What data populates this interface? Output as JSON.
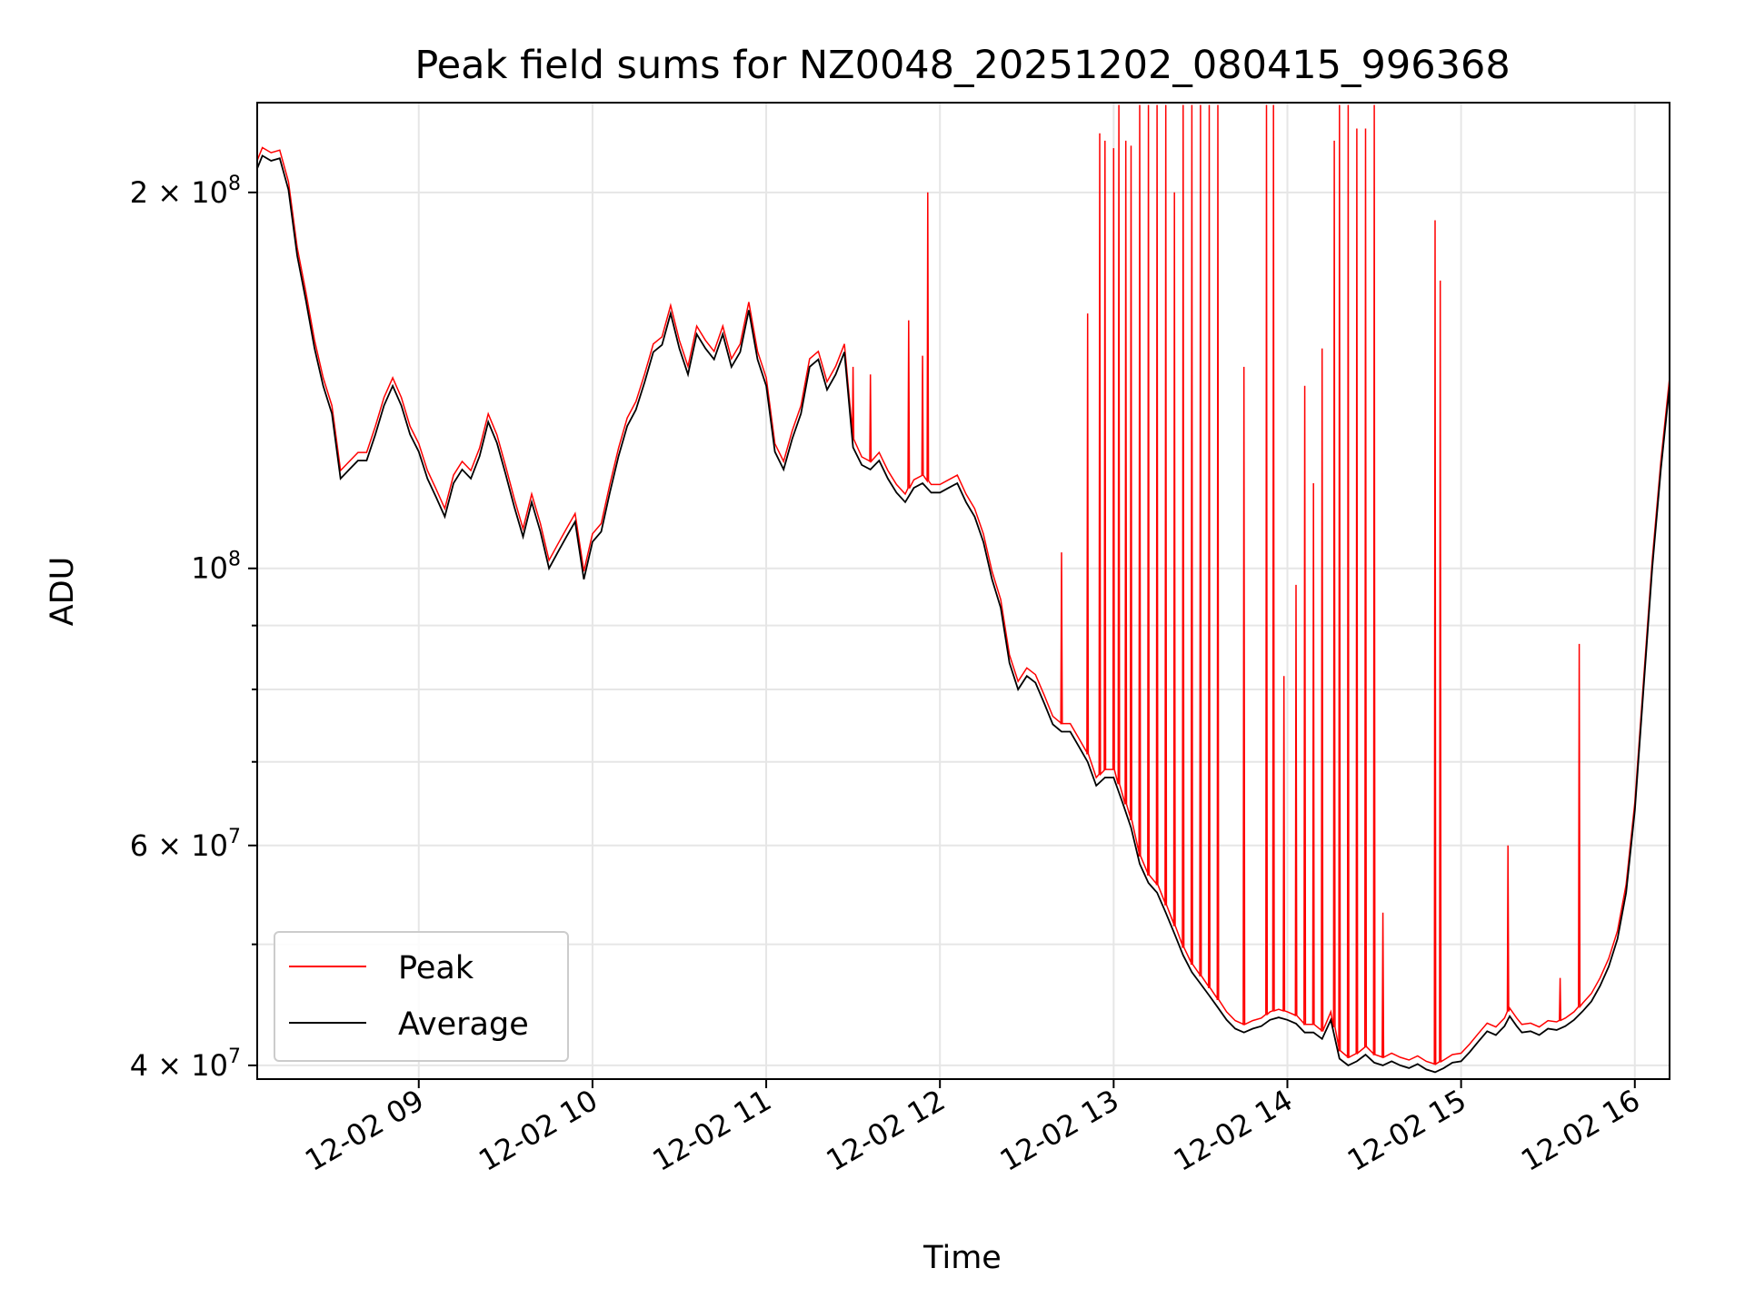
{
  "chart_data": {
    "type": "line",
    "title": "Peak field sums for NZ0048_20251202_080415_996368",
    "xlabel": "Time",
    "ylabel": "ADU",
    "y_scale": "log",
    "x_unit": "hour",
    "xlim": [
      8.07,
      16.2
    ],
    "ylim": [
      39000000,
      236000000
    ],
    "grid": true,
    "legend_position": "lower-left",
    "x_ticks": [
      {
        "value": 9,
        "label": "12-02 09"
      },
      {
        "value": 10,
        "label": "12-02 10"
      },
      {
        "value": 11,
        "label": "12-02 11"
      },
      {
        "value": 12,
        "label": "12-02 12"
      },
      {
        "value": 13,
        "label": "12-02 13"
      },
      {
        "value": 14,
        "label": "12-02 14"
      },
      {
        "value": 15,
        "label": "12-02 15"
      },
      {
        "value": 16,
        "label": "12-02 16"
      }
    ],
    "y_major_ticks": [
      {
        "value": 40000000,
        "mantissa": "4",
        "exponent": "7"
      },
      {
        "value": 60000000,
        "mantissa": "6",
        "exponent": "7"
      },
      {
        "value": 100000000,
        "mantissa": "",
        "exponent": "8"
      },
      {
        "value": 200000000,
        "mantissa": "2",
        "exponent": "8"
      }
    ],
    "y_minor_grid": [
      50000000,
      70000000,
      80000000,
      90000000
    ],
    "average_points": [
      [
        8.07,
        209000000
      ],
      [
        8.1,
        214000000
      ],
      [
        8.15,
        212000000
      ],
      [
        8.2,
        213000000
      ],
      [
        8.25,
        201000000
      ],
      [
        8.3,
        178000000
      ],
      [
        8.35,
        164000000
      ],
      [
        8.4,
        150000000
      ],
      [
        8.45,
        140000000
      ],
      [
        8.5,
        133000000
      ],
      [
        8.55,
        118000000
      ],
      [
        8.6,
        120000000
      ],
      [
        8.65,
        122000000
      ],
      [
        8.7,
        122000000
      ],
      [
        8.75,
        128000000
      ],
      [
        8.8,
        135000000
      ],
      [
        8.85,
        140000000
      ],
      [
        8.9,
        135000000
      ],
      [
        8.95,
        128000000
      ],
      [
        9.0,
        124000000
      ],
      [
        9.05,
        118000000
      ],
      [
        9.1,
        114000000
      ],
      [
        9.15,
        110000000
      ],
      [
        9.2,
        117000000
      ],
      [
        9.25,
        120000000
      ],
      [
        9.3,
        118000000
      ],
      [
        9.35,
        123000000
      ],
      [
        9.4,
        131000000
      ],
      [
        9.45,
        126000000
      ],
      [
        9.5,
        119000000
      ],
      [
        9.55,
        112000000
      ],
      [
        9.6,
        106000000
      ],
      [
        9.65,
        113000000
      ],
      [
        9.7,
        107000000
      ],
      [
        9.75,
        100000000
      ],
      [
        9.8,
        103000000
      ],
      [
        9.85,
        106000000
      ],
      [
        9.9,
        109000000
      ],
      [
        9.95,
        98000000
      ],
      [
        10.0,
        105000000
      ],
      [
        10.05,
        107000000
      ],
      [
        10.1,
        115000000
      ],
      [
        10.15,
        123000000
      ],
      [
        10.2,
        130000000
      ],
      [
        10.25,
        134000000
      ],
      [
        10.3,
        141000000
      ],
      [
        10.35,
        149000000
      ],
      [
        10.4,
        151000000
      ],
      [
        10.45,
        160000000
      ],
      [
        10.5,
        150000000
      ],
      [
        10.55,
        143000000
      ],
      [
        10.6,
        154000000
      ],
      [
        10.65,
        150000000
      ],
      [
        10.7,
        147000000
      ],
      [
        10.75,
        154000000
      ],
      [
        10.8,
        145000000
      ],
      [
        10.85,
        149000000
      ],
      [
        10.9,
        161000000
      ],
      [
        10.95,
        147000000
      ],
      [
        11.0,
        140000000
      ],
      [
        11.05,
        124000000
      ],
      [
        11.1,
        120000000
      ],
      [
        11.15,
        127000000
      ],
      [
        11.2,
        133000000
      ],
      [
        11.25,
        145000000
      ],
      [
        11.3,
        147000000
      ],
      [
        11.35,
        139000000
      ],
      [
        11.4,
        143000000
      ],
      [
        11.45,
        149000000
      ],
      [
        11.5,
        125000000
      ],
      [
        11.55,
        121000000
      ],
      [
        11.6,
        120000000
      ],
      [
        11.65,
        122000000
      ],
      [
        11.7,
        118000000
      ],
      [
        11.75,
        115000000
      ],
      [
        11.8,
        113000000
      ],
      [
        11.85,
        116000000
      ],
      [
        11.9,
        117000000
      ],
      [
        11.95,
        115000000
      ],
      [
        12.0,
        115000000
      ],
      [
        12.05,
        116000000
      ],
      [
        12.1,
        117000000
      ],
      [
        12.15,
        113000000
      ],
      [
        12.2,
        110000000
      ],
      [
        12.25,
        105000000
      ],
      [
        12.3,
        98000000
      ],
      [
        12.35,
        93000000
      ],
      [
        12.4,
        84000000
      ],
      [
        12.45,
        80000000
      ],
      [
        12.5,
        82000000
      ],
      [
        12.55,
        81000000
      ],
      [
        12.6,
        78000000
      ],
      [
        12.65,
        75000000
      ],
      [
        12.7,
        74000000
      ],
      [
        12.75,
        74000000
      ],
      [
        12.8,
        72000000
      ],
      [
        12.85,
        70000000
      ],
      [
        12.9,
        67000000
      ],
      [
        12.95,
        68000000
      ],
      [
        13.0,
        68000000
      ],
      [
        13.05,
        65000000
      ],
      [
        13.1,
        62000000
      ],
      [
        13.15,
        58000000
      ],
      [
        13.2,
        56000000
      ],
      [
        13.25,
        55000000
      ],
      [
        13.3,
        53000000
      ],
      [
        13.35,
        51000000
      ],
      [
        13.4,
        49000000
      ],
      [
        13.45,
        47500000
      ],
      [
        13.5,
        46500000
      ],
      [
        13.55,
        45500000
      ],
      [
        13.6,
        44500000
      ],
      [
        13.65,
        43500000
      ],
      [
        13.7,
        42800000
      ],
      [
        13.75,
        42500000
      ],
      [
        13.8,
        42800000
      ],
      [
        13.85,
        43000000
      ],
      [
        13.9,
        43500000
      ],
      [
        13.95,
        43700000
      ],
      [
        14.0,
        43500000
      ],
      [
        14.05,
        43200000
      ],
      [
        14.1,
        42500000
      ],
      [
        14.15,
        42500000
      ],
      [
        14.2,
        42000000
      ],
      [
        14.25,
        43500000
      ],
      [
        14.3,
        40500000
      ],
      [
        14.35,
        40000000
      ],
      [
        14.4,
        40300000
      ],
      [
        14.45,
        40800000
      ],
      [
        14.5,
        40200000
      ],
      [
        14.55,
        40000000
      ],
      [
        14.6,
        40300000
      ],
      [
        14.65,
        40000000
      ],
      [
        14.7,
        39800000
      ],
      [
        14.75,
        40100000
      ],
      [
        14.8,
        39700000
      ],
      [
        14.85,
        39500000
      ],
      [
        14.9,
        39800000
      ],
      [
        14.95,
        40200000
      ],
      [
        15.0,
        40300000
      ],
      [
        15.05,
        41000000
      ],
      [
        15.1,
        41800000
      ],
      [
        15.15,
        42600000
      ],
      [
        15.2,
        42300000
      ],
      [
        15.25,
        43000000
      ],
      [
        15.28,
        43800000
      ],
      [
        15.32,
        43000000
      ],
      [
        15.35,
        42500000
      ],
      [
        15.4,
        42600000
      ],
      [
        15.45,
        42300000
      ],
      [
        15.5,
        42800000
      ],
      [
        15.55,
        42700000
      ],
      [
        15.6,
        43000000
      ],
      [
        15.65,
        43500000
      ],
      [
        15.7,
        44200000
      ],
      [
        15.75,
        45000000
      ],
      [
        15.8,
        46300000
      ],
      [
        15.85,
        48000000
      ],
      [
        15.9,
        50500000
      ],
      [
        15.95,
        55000000
      ],
      [
        16.0,
        64000000
      ],
      [
        16.05,
        80000000
      ],
      [
        16.1,
        100000000
      ],
      [
        16.15,
        120000000
      ],
      [
        16.2,
        140000000
      ]
    ],
    "peak_spikes": [
      [
        11.5,
        145000000
      ],
      [
        11.6,
        143000000
      ],
      [
        11.82,
        158000000
      ],
      [
        11.9,
        148000000
      ],
      [
        11.93,
        200000000
      ],
      [
        12.7,
        103000000
      ],
      [
        12.85,
        160000000
      ],
      [
        12.92,
        223000000
      ],
      [
        12.95,
        220000000
      ],
      [
        13.0,
        217000000
      ],
      [
        13.03,
        235000000
      ],
      [
        13.07,
        220000000
      ],
      [
        13.1,
        218000000
      ],
      [
        13.15,
        235000000
      ],
      [
        13.2,
        235000000
      ],
      [
        13.25,
        235000000
      ],
      [
        13.3,
        235000000
      ],
      [
        13.35,
        200000000
      ],
      [
        13.4,
        235000000
      ],
      [
        13.45,
        235000000
      ],
      [
        13.5,
        235000000
      ],
      [
        13.55,
        235000000
      ],
      [
        13.6,
        235000000
      ],
      [
        13.75,
        145000000
      ],
      [
        13.88,
        235000000
      ],
      [
        13.92,
        235000000
      ],
      [
        13.98,
        82000000
      ],
      [
        14.05,
        97000000
      ],
      [
        14.1,
        140000000
      ],
      [
        14.15,
        117000000
      ],
      [
        14.2,
        150000000
      ],
      [
        14.27,
        220000000
      ],
      [
        14.3,
        235000000
      ],
      [
        14.35,
        235000000
      ],
      [
        14.4,
        225000000
      ],
      [
        14.45,
        225000000
      ],
      [
        14.5,
        235000000
      ],
      [
        14.55,
        53000000
      ],
      [
        14.85,
        190000000
      ],
      [
        14.88,
        170000000
      ],
      [
        15.27,
        60000000
      ],
      [
        15.57,
        47000000
      ],
      [
        15.68,
        87000000
      ]
    ],
    "series": [
      {
        "name": "Peak",
        "color": "#ff0000"
      },
      {
        "name": "Average",
        "color": "#000000"
      }
    ]
  }
}
